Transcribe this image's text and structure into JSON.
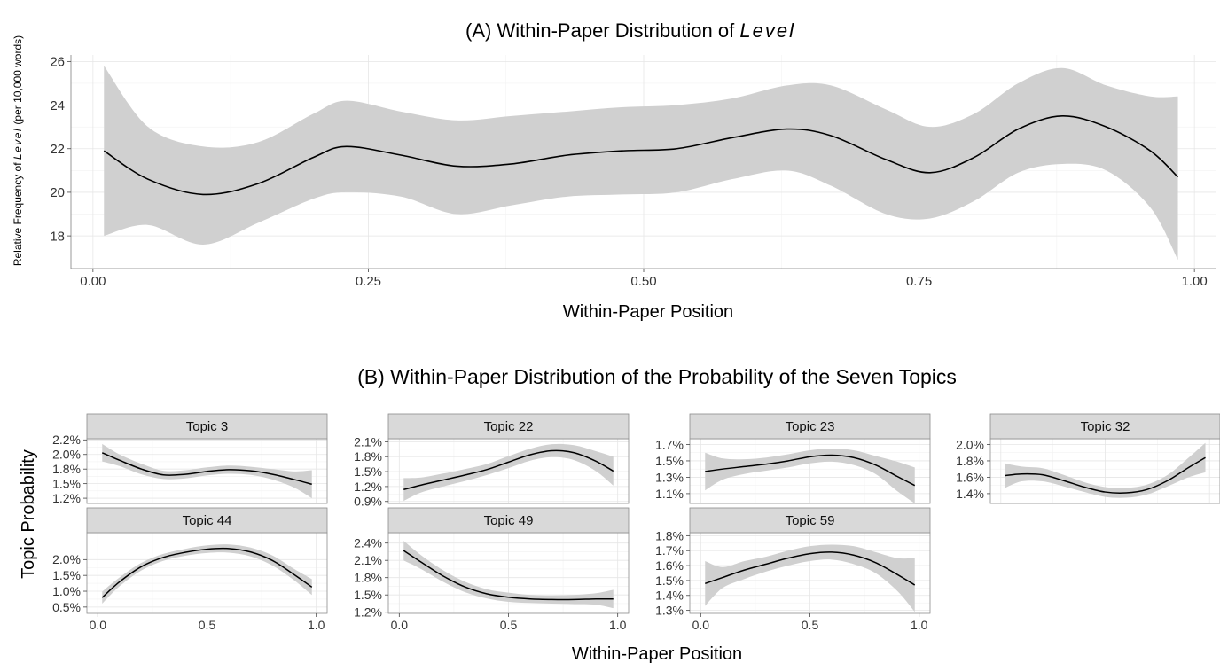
{
  "chart_data": [
    {
      "type": "line",
      "title": "(A) Within-Paper Distribution of ",
      "title_italic": "Level",
      "xlabel": "Within-Paper Position",
      "ylabel": "Relative Frequency of ",
      "ylabel_italic": "Level",
      "ylabel_suffix": " (per 10,000 words)",
      "xlim": [
        -0.02,
        1.02
      ],
      "ylim": [
        16.5,
        26.3
      ],
      "xticks": [
        0,
        0.25,
        0.5,
        0.75,
        1
      ],
      "xtick_labels": [
        "0.00",
        "0.25",
        "0.50",
        "0.75",
        "1.00"
      ],
      "yticks": [
        18,
        20,
        22,
        24,
        26
      ],
      "ytick_labels": [
        "18",
        "20",
        "22",
        "24",
        "26"
      ],
      "grid": true,
      "series": [
        {
          "x": [
            0.01,
            0.05,
            0.1,
            0.15,
            0.2,
            0.23,
            0.28,
            0.33,
            0.38,
            0.43,
            0.48,
            0.53,
            0.58,
            0.63,
            0.67,
            0.72,
            0.76,
            0.8,
            0.84,
            0.88,
            0.92,
            0.96,
            0.985
          ],
          "y": [
            21.9,
            20.6,
            19.9,
            20.4,
            21.6,
            22.1,
            21.7,
            21.2,
            21.3,
            21.7,
            21.9,
            22.0,
            22.5,
            22.9,
            22.6,
            21.5,
            20.9,
            21.6,
            22.9,
            23.5,
            23.0,
            21.9,
            20.7
          ],
          "lower": [
            18.0,
            18.5,
            17.6,
            18.6,
            19.7,
            20.0,
            19.8,
            19.0,
            19.4,
            19.8,
            19.9,
            20.0,
            20.6,
            21.0,
            20.3,
            19.0,
            18.8,
            19.6,
            20.9,
            21.3,
            21.0,
            19.3,
            16.9
          ],
          "upper": [
            25.8,
            23.0,
            22.1,
            22.3,
            23.6,
            24.2,
            23.7,
            23.3,
            23.5,
            23.7,
            23.9,
            24.0,
            24.3,
            24.9,
            24.9,
            23.8,
            23.0,
            23.6,
            25.0,
            25.7,
            24.9,
            24.4,
            24.4
          ]
        }
      ]
    },
    {
      "type": "line",
      "title": "(B) Within-Paper Distribution of the Probability of the Seven Topics",
      "xlabel": "Within-Paper Position",
      "ylabel": "Topic Probability",
      "xlim": [
        -0.05,
        1.05
      ],
      "xticks": [
        0,
        0.5,
        1
      ],
      "xtick_labels": [
        "0.0",
        "0.5",
        "1.0"
      ],
      "grid": true,
      "panels": [
        {
          "name": "Topic 3",
          "ylim": [
            1.16,
            2.27
          ],
          "yticks": [
            1.25,
            1.5,
            1.75,
            2.0,
            2.25
          ],
          "ytick_labels": [
            "1.2%",
            "1.5%",
            "1.8%",
            "2.0%",
            "2.2%"
          ],
          "x": [
            0.02,
            0.1,
            0.2,
            0.3,
            0.4,
            0.5,
            0.6,
            0.7,
            0.8,
            0.9,
            0.98
          ],
          "y": [
            2.03,
            1.9,
            1.75,
            1.65,
            1.66,
            1.71,
            1.74,
            1.72,
            1.66,
            1.57,
            1.49
          ],
          "lower": [
            1.88,
            1.8,
            1.66,
            1.58,
            1.59,
            1.64,
            1.67,
            1.65,
            1.57,
            1.43,
            1.25
          ],
          "upper": [
            2.18,
            2.0,
            1.84,
            1.72,
            1.73,
            1.78,
            1.81,
            1.79,
            1.75,
            1.71,
            1.73
          ]
        },
        {
          "name": "Topic 22",
          "ylim": [
            0.86,
            2.16
          ],
          "yticks": [
            0.9,
            1.2,
            1.5,
            1.8,
            2.1
          ],
          "ytick_labels": [
            "0.9%",
            "1.2%",
            "1.5%",
            "1.8%",
            "2.1%"
          ],
          "x": [
            0.02,
            0.1,
            0.2,
            0.3,
            0.4,
            0.5,
            0.6,
            0.7,
            0.8,
            0.9,
            0.98
          ],
          "y": [
            1.14,
            1.23,
            1.33,
            1.43,
            1.54,
            1.69,
            1.84,
            1.92,
            1.88,
            1.71,
            1.51
          ],
          "lower": [
            0.91,
            1.08,
            1.2,
            1.31,
            1.43,
            1.57,
            1.72,
            1.79,
            1.73,
            1.51,
            1.22
          ],
          "upper": [
            1.37,
            1.38,
            1.46,
            1.55,
            1.65,
            1.81,
            1.96,
            2.05,
            2.03,
            1.91,
            1.8
          ]
        },
        {
          "name": "Topic 23",
          "ylim": [
            0.98,
            1.77
          ],
          "yticks": [
            1.1,
            1.3,
            1.5,
            1.7
          ],
          "ytick_labels": [
            "1.1%",
            "1.3%",
            "1.5%",
            "1.7%"
          ],
          "x": [
            0.02,
            0.1,
            0.2,
            0.3,
            0.4,
            0.5,
            0.6,
            0.7,
            0.8,
            0.9,
            0.98
          ],
          "y": [
            1.37,
            1.4,
            1.43,
            1.46,
            1.5,
            1.55,
            1.57,
            1.54,
            1.45,
            1.31,
            1.2
          ],
          "lower": [
            1.14,
            1.27,
            1.34,
            1.38,
            1.42,
            1.47,
            1.49,
            1.45,
            1.34,
            1.13,
            0.98
          ],
          "upper": [
            1.6,
            1.53,
            1.52,
            1.54,
            1.58,
            1.63,
            1.65,
            1.63,
            1.56,
            1.49,
            1.42
          ]
        },
        {
          "name": "Topic 32",
          "ylim": [
            1.28,
            2.07
          ],
          "yticks": [
            1.4,
            1.6,
            1.8,
            2.0
          ],
          "ytick_labels": [
            "1.4%",
            "1.6%",
            "1.8%",
            "2.0%"
          ],
          "x": [
            0.02,
            0.1,
            0.2,
            0.3,
            0.4,
            0.5,
            0.6,
            0.7,
            0.8,
            0.9,
            0.98
          ],
          "y": [
            1.62,
            1.64,
            1.63,
            1.56,
            1.48,
            1.42,
            1.41,
            1.45,
            1.56,
            1.72,
            1.84
          ],
          "lower": [
            1.47,
            1.55,
            1.55,
            1.49,
            1.42,
            1.36,
            1.35,
            1.39,
            1.49,
            1.6,
            1.66
          ],
          "upper": [
            1.77,
            1.73,
            1.71,
            1.63,
            1.54,
            1.48,
            1.47,
            1.51,
            1.63,
            1.84,
            2.02
          ]
        },
        {
          "name": "Topic 44",
          "ylim": [
            0.3,
            2.85
          ],
          "yticks": [
            0.5,
            1.0,
            1.5,
            2.0
          ],
          "ytick_labels": [
            "0.5%",
            "1.0%",
            "1.5%",
            "2.0%"
          ],
          "x": [
            0.02,
            0.1,
            0.2,
            0.3,
            0.4,
            0.5,
            0.6,
            0.7,
            0.8,
            0.9,
            0.98
          ],
          "y": [
            0.8,
            1.3,
            1.78,
            2.07,
            2.23,
            2.33,
            2.35,
            2.24,
            1.97,
            1.52,
            1.13
          ],
          "lower": [
            0.61,
            1.16,
            1.66,
            1.96,
            2.12,
            2.21,
            2.22,
            2.1,
            1.81,
            1.34,
            0.88
          ],
          "upper": [
            0.99,
            1.44,
            1.9,
            2.18,
            2.34,
            2.45,
            2.48,
            2.38,
            2.13,
            1.7,
            1.38
          ]
        },
        {
          "name": "Topic 49",
          "ylim": [
            1.18,
            2.58
          ],
          "yticks": [
            1.2,
            1.5,
            1.8,
            2.1,
            2.4
          ],
          "ytick_labels": [
            "1.2%",
            "1.5%",
            "1.8%",
            "2.1%",
            "2.4%"
          ],
          "x": [
            0.02,
            0.1,
            0.2,
            0.3,
            0.4,
            0.5,
            0.6,
            0.7,
            0.8,
            0.9,
            0.98
          ],
          "y": [
            2.27,
            2.07,
            1.83,
            1.64,
            1.52,
            1.46,
            1.43,
            1.42,
            1.42,
            1.43,
            1.43
          ],
          "lower": [
            2.1,
            1.95,
            1.73,
            1.55,
            1.44,
            1.38,
            1.36,
            1.35,
            1.34,
            1.33,
            1.27
          ],
          "upper": [
            2.44,
            2.19,
            1.93,
            1.73,
            1.6,
            1.54,
            1.5,
            1.49,
            1.5,
            1.53,
            1.59
          ]
        },
        {
          "name": "Topic 59",
          "ylim": [
            1.28,
            1.82
          ],
          "yticks": [
            1.3,
            1.4,
            1.5,
            1.6,
            1.7,
            1.8
          ],
          "ytick_labels": [
            "1.3%",
            "1.4%",
            "1.5%",
            "1.6%",
            "1.7%",
            "1.8%"
          ],
          "x": [
            0.02,
            0.1,
            0.2,
            0.3,
            0.4,
            0.5,
            0.6,
            0.7,
            0.8,
            0.9,
            0.98
          ],
          "y": [
            1.48,
            1.52,
            1.57,
            1.61,
            1.65,
            1.68,
            1.69,
            1.67,
            1.62,
            1.54,
            1.47
          ],
          "lower": [
            1.33,
            1.45,
            1.51,
            1.56,
            1.6,
            1.63,
            1.64,
            1.61,
            1.55,
            1.43,
            1.29
          ],
          "upper": [
            1.63,
            1.59,
            1.63,
            1.66,
            1.7,
            1.73,
            1.74,
            1.73,
            1.69,
            1.65,
            1.65
          ]
        }
      ]
    }
  ]
}
